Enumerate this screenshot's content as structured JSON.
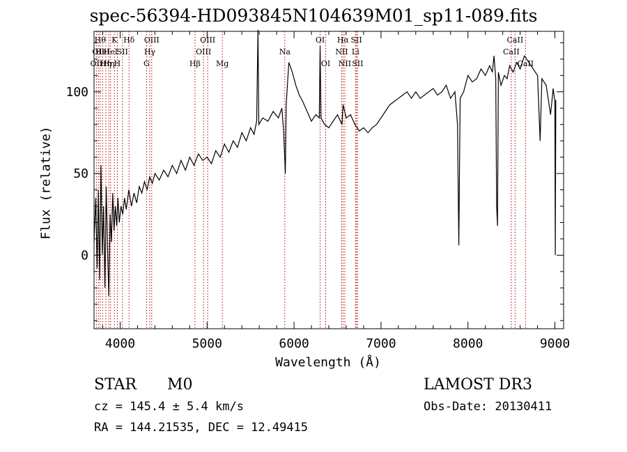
{
  "chart_data": {
    "type": "line",
    "title": "spec-56394-HD093845N104639M01_sp11-089.fits",
    "xlabel": "Wavelength (Å)",
    "ylabel": "Flux (relative)",
    "xlim": [
      3700,
      9100
    ],
    "ylim": [
      -45,
      137
    ],
    "x_ticks": [
      4000,
      5000,
      6000,
      7000,
      8000,
      9000
    ],
    "y_ticks": [
      0,
      50,
      100
    ],
    "grid": false,
    "line_color": "#000000",
    "marker_color": "#b00000",
    "series": [
      {
        "values": [
          [
            3700,
            8
          ],
          [
            3720,
            35
          ],
          [
            3735,
            -8
          ],
          [
            3750,
            40
          ],
          [
            3765,
            -15
          ],
          [
            3780,
            55
          ],
          [
            3795,
            0
          ],
          [
            3810,
            30
          ],
          [
            3825,
            -20
          ],
          [
            3840,
            42
          ],
          [
            3855,
            5
          ],
          [
            3870,
            -25
          ],
          [
            3885,
            25
          ],
          [
            3900,
            8
          ],
          [
            3915,
            38
          ],
          [
            3930,
            15
          ],
          [
            3945,
            30
          ],
          [
            3960,
            18
          ],
          [
            3975,
            35
          ],
          [
            3990,
            20
          ],
          [
            4010,
            30
          ],
          [
            4030,
            25
          ],
          [
            4050,
            35
          ],
          [
            4070,
            28
          ],
          [
            4100,
            40
          ],
          [
            4130,
            30
          ],
          [
            4160,
            38
          ],
          [
            4190,
            32
          ],
          [
            4220,
            42
          ],
          [
            4250,
            38
          ],
          [
            4280,
            45
          ],
          [
            4310,
            40
          ],
          [
            4340,
            48
          ],
          [
            4370,
            44
          ],
          [
            4400,
            50
          ],
          [
            4450,
            46
          ],
          [
            4500,
            52
          ],
          [
            4550,
            48
          ],
          [
            4600,
            55
          ],
          [
            4650,
            50
          ],
          [
            4700,
            58
          ],
          [
            4750,
            52
          ],
          [
            4800,
            60
          ],
          [
            4850,
            55
          ],
          [
            4900,
            62
          ],
          [
            4950,
            58
          ],
          [
            5000,
            60
          ],
          [
            5050,
            56
          ],
          [
            5100,
            64
          ],
          [
            5150,
            60
          ],
          [
            5200,
            68
          ],
          [
            5250,
            63
          ],
          [
            5300,
            70
          ],
          [
            5350,
            66
          ],
          [
            5400,
            75
          ],
          [
            5450,
            70
          ],
          [
            5500,
            78
          ],
          [
            5540,
            74
          ],
          [
            5570,
            82
          ],
          [
            5585,
            138
          ],
          [
            5595,
            80
          ],
          [
            5640,
            84
          ],
          [
            5700,
            82
          ],
          [
            5760,
            88
          ],
          [
            5820,
            84
          ],
          [
            5860,
            90
          ],
          [
            5880,
            76
          ],
          [
            5900,
            50
          ],
          [
            5910,
            92
          ],
          [
            5940,
            118
          ],
          [
            5980,
            112
          ],
          [
            6020,
            104
          ],
          [
            6060,
            98
          ],
          [
            6100,
            94
          ],
          [
            6150,
            88
          ],
          [
            6200,
            82
          ],
          [
            6250,
            86
          ],
          [
            6290,
            84
          ],
          [
            6300,
            128
          ],
          [
            6310,
            84
          ],
          [
            6350,
            80
          ],
          [
            6400,
            78
          ],
          [
            6450,
            82
          ],
          [
            6500,
            86
          ],
          [
            6550,
            80
          ],
          [
            6564,
            92
          ],
          [
            6600,
            84
          ],
          [
            6650,
            86
          ],
          [
            6700,
            80
          ],
          [
            6750,
            76
          ],
          [
            6800,
            78
          ],
          [
            6850,
            75
          ],
          [
            6900,
            78
          ],
          [
            6950,
            80
          ],
          [
            7000,
            84
          ],
          [
            7050,
            88
          ],
          [
            7100,
            92
          ],
          [
            7150,
            94
          ],
          [
            7200,
            96
          ],
          [
            7250,
            98
          ],
          [
            7300,
            100
          ],
          [
            7350,
            96
          ],
          [
            7400,
            100
          ],
          [
            7450,
            96
          ],
          [
            7500,
            98
          ],
          [
            7550,
            100
          ],
          [
            7600,
            102
          ],
          [
            7650,
            98
          ],
          [
            7700,
            100
          ],
          [
            7750,
            104
          ],
          [
            7800,
            96
          ],
          [
            7850,
            100
          ],
          [
            7880,
            80
          ],
          [
            7895,
            6
          ],
          [
            7910,
            96
          ],
          [
            7950,
            100
          ],
          [
            8000,
            110
          ],
          [
            8050,
            106
          ],
          [
            8100,
            108
          ],
          [
            8150,
            114
          ],
          [
            8200,
            110
          ],
          [
            8250,
            116
          ],
          [
            8280,
            112
          ],
          [
            8300,
            122
          ],
          [
            8320,
            108
          ],
          [
            8330,
            30
          ],
          [
            8340,
            18
          ],
          [
            8350,
            112
          ],
          [
            8380,
            104
          ],
          [
            8420,
            110
          ],
          [
            8450,
            108
          ],
          [
            8480,
            116
          ],
          [
            8520,
            112
          ],
          [
            8560,
            118
          ],
          [
            8600,
            114
          ],
          [
            8650,
            122
          ],
          [
            8700,
            118
          ],
          [
            8750,
            114
          ],
          [
            8800,
            110
          ],
          [
            8830,
            70
          ],
          [
            8850,
            108
          ],
          [
            8900,
            104
          ],
          [
            8950,
            86
          ],
          [
            8980,
            102
          ],
          [
            9000,
            94
          ],
          [
            9005,
            0
          ],
          [
            9010,
            95
          ]
        ]
      }
    ],
    "line_markers": [
      {
        "w": 3727,
        "labels": [
          "OII"
        ],
        "row": 3
      },
      {
        "w": 3750,
        "labels": [
          "OII"
        ],
        "row": 2
      },
      {
        "w": 3770,
        "labels": [
          "Hθ"
        ],
        "row": 1
      },
      {
        "w": 3798,
        "labels": [
          "HeI"
        ],
        "row": 2
      },
      {
        "w": 3835,
        "labels": [
          "Hη"
        ],
        "row": 3
      },
      {
        "w": 3870,
        "labels": [
          "Hη"
        ],
        "row": 3
      },
      {
        "w": 3890,
        "labels": [
          "HeI"
        ],
        "row": 2
      },
      {
        "w": 3934,
        "labels": [
          "K"
        ],
        "row": 1
      },
      {
        "w": 3968,
        "labels": [
          "H"
        ],
        "row": 3
      },
      {
        "w": 4026,
        "labels": [
          "SII"
        ],
        "row": 2
      },
      {
        "w": 4102,
        "labels": [
          "Hδ"
        ],
        "row": 1
      },
      {
        "w": 4304,
        "labels": [
          "G"
        ],
        "row": 3
      },
      {
        "w": 4341,
        "labels": [
          "Hγ"
        ],
        "row": 2
      },
      {
        "w": 4363,
        "labels": [
          "OIII"
        ],
        "row": 1
      },
      {
        "w": 4861,
        "labels": [
          "Hβ"
        ],
        "row": 3
      },
      {
        "w": 4959,
        "labels": [
          "OIII"
        ],
        "row": 2
      },
      {
        "w": 5007,
        "labels": [
          "OIII"
        ],
        "row": 1
      },
      {
        "w": 5175,
        "labels": [
          "Mg"
        ],
        "row": 3
      },
      {
        "w": 5894,
        "labels": [
          "Na"
        ],
        "row": 2
      },
      {
        "w": 6300,
        "labels": [
          "OI"
        ],
        "row": 1
      },
      {
        "w": 6364,
        "labels": [
          "OI"
        ],
        "row": 3
      },
      {
        "w": 6548,
        "labels": [
          "NII"
        ],
        "row": 2
      },
      {
        "w": 6563,
        "labels": [
          "Hα"
        ],
        "row": 1
      },
      {
        "w": 6584,
        "labels": [
          "NII"
        ],
        "row": 3
      },
      {
        "w": 6707,
        "labels": [
          "Li"
        ],
        "row": 2
      },
      {
        "w": 6717,
        "labels": [
          "SII"
        ],
        "row": 1
      },
      {
        "w": 6731,
        "labels": [
          "SII"
        ],
        "row": 3
      },
      {
        "w": 8498,
        "labels": [
          "CaII"
        ],
        "row": 2
      },
      {
        "w": 8542,
        "labels": [
          "CaII"
        ],
        "row": 1
      },
      {
        "w": 8662,
        "labels": [
          "CaII"
        ],
        "row": 3
      }
    ]
  },
  "info": {
    "class_type": "STAR",
    "subclass": "M0",
    "survey": "LAMOST DR3",
    "cz_line": "cz = 145.4 ± 5.4 km/s",
    "obs_date_line": "Obs-Date: 20130411",
    "radec_line": "RA = 144.21535, DEC =  12.49415"
  }
}
